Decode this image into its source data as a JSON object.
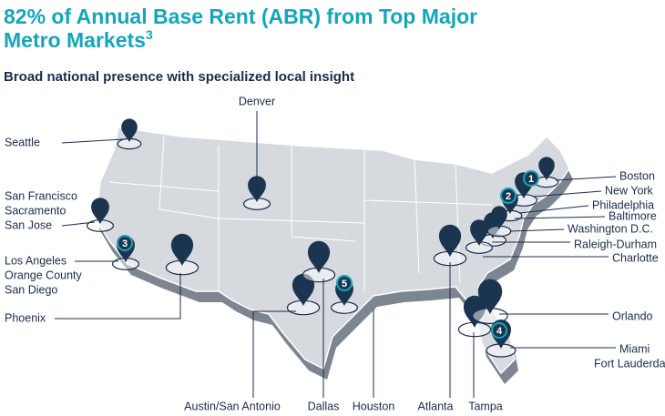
{
  "header": {
    "title": [
      "82% of Annual Base Rent (ABR) from Top Major",
      "Metro Markets"
    ],
    "title_footnote": "3",
    "subtitle": "Broad national presence with specialized local insight"
  },
  "map": {
    "labels": [
      "Seattle",
      "Denver",
      "San Francisco",
      "Sacramento",
      "San Jose",
      "Los Angeles",
      "Orange County",
      "San Diego",
      "Phoenix",
      "Austin/San Antonio",
      "Dallas",
      "Houston",
      "Atlanta",
      "Tampa",
      "Boston",
      "New York",
      "Philadelphia",
      "Baltimore",
      "Washington D.C.",
      "Raleigh-Durham",
      "Charlotte",
      "Orlando",
      "Miami",
      "Fort Lauderdale"
    ],
    "badges": [
      1,
      2,
      3,
      4,
      5
    ]
  }
}
